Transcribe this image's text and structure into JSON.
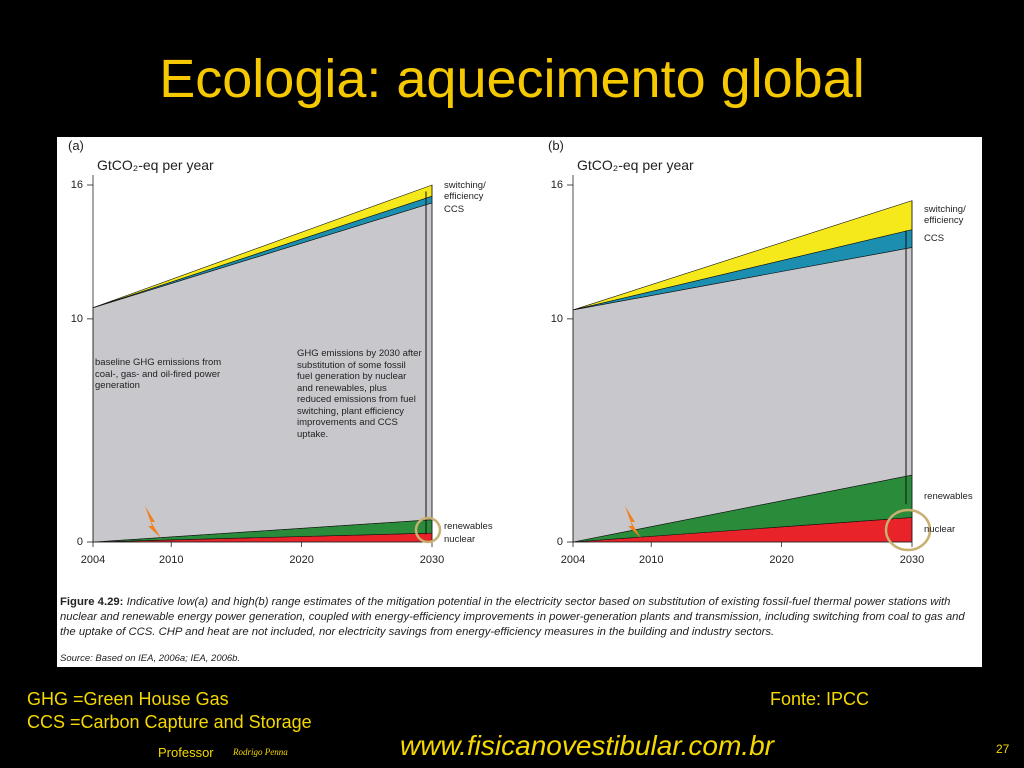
{
  "title": "Ecologia: aquecimento global",
  "chart_data": [
    {
      "type": "area",
      "stacked": true,
      "panel": "(a)",
      "ylabel": "GtCO₂-eq per year",
      "x": [
        2004,
        2030
      ],
      "xlim": [
        2004,
        2030
      ],
      "xticks": [
        2004,
        2010,
        2020,
        2030
      ],
      "ylim": [
        0,
        16
      ],
      "yticks": [
        0,
        10,
        16
      ],
      "series": [
        {
          "name": "nuclear",
          "color": "#e8232a",
          "values": [
            0,
            0.4
          ]
        },
        {
          "name": "renewables",
          "color": "#2a8c3a",
          "values": [
            0,
            0.6
          ]
        },
        {
          "color": "#c8c8cc",
          "values": [
            10.5,
            14.2
          ]
        },
        {
          "name": "CCS",
          "color": "#1c8fb0",
          "values": [
            0,
            0.3
          ]
        },
        {
          "name": "switching/ efficiency",
          "color": "#f5e91c",
          "values": [
            0,
            0.5
          ]
        }
      ],
      "annotations": [
        "baseline GHG emissions from coal-, gas- and oil-fired power generation",
        "GHG emissions by 2030 after substitution of some fossil fuel generation by nuclear and renewables, plus reduced emissions from fuel switching, plant efficiency improvements and CCS uptake."
      ]
    },
    {
      "type": "area",
      "stacked": true,
      "panel": "(b)",
      "ylabel": "GtCO₂-eq per year",
      "x": [
        2004,
        2030
      ],
      "xlim": [
        2004,
        2030
      ],
      "xticks": [
        2004,
        2010,
        2020,
        2030
      ],
      "ylim": [
        0,
        16
      ],
      "yticks": [
        0,
        10,
        16
      ],
      "series": [
        {
          "name": "nuclear",
          "color": "#e8232a",
          "values": [
            0,
            1.1
          ]
        },
        {
          "name": "renewables",
          "color": "#2a8c3a",
          "values": [
            0,
            1.9
          ]
        },
        {
          "color": "#c8c8cc",
          "values": [
            10.4,
            10.2
          ]
        },
        {
          "name": "CCS",
          "color": "#1c8fb0",
          "values": [
            0,
            0.8
          ]
        },
        {
          "name": "switching/ efficiency",
          "color": "#f5e91c",
          "values": [
            0,
            1.3
          ]
        }
      ]
    }
  ],
  "caption": {
    "label": "Figure 4.29:",
    "text": "Indicative low(a) and high(b) range estimates of the mitigation potential in the electricity sector based on substitution of existing fossil-fuel thermal power stations with nuclear and renewable energy power generation, coupled with energy-efficiency improvements in power-generation plants and transmission, including switching from coal to gas and the uptake of CCS. CHP and heat are not included, nor electricity savings from energy-efficiency measures in the building and industry sectors.",
    "source": "Source: Based on IEA, 2006a; IEA, 2006b."
  },
  "footer": {
    "notes": [
      "GHG =Green House Gas",
      "CCS =Carbon Capture and Storage"
    ],
    "credit": "Fonte: IPCC",
    "professor": "Professor",
    "signature": "Rodrigo Penna",
    "website": "www.fisicanovestibular.com.br",
    "page": 27
  }
}
